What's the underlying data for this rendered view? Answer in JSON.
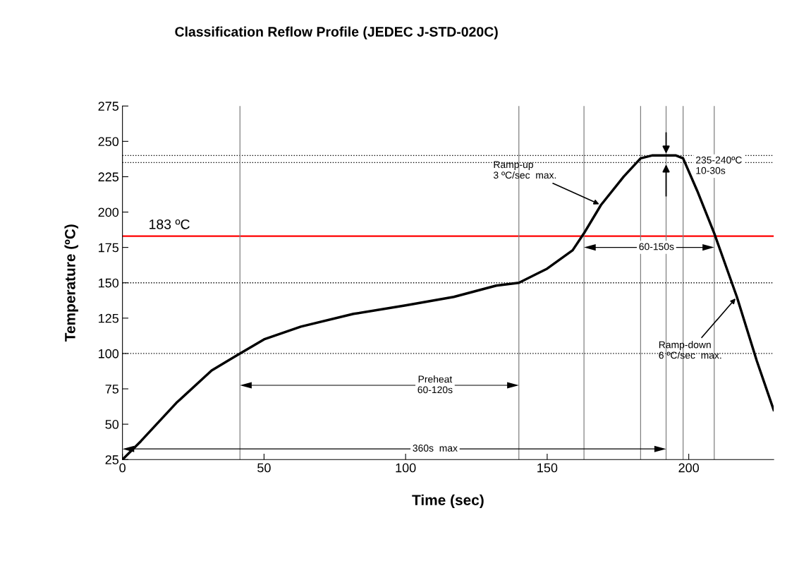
{
  "chart_data": {
    "type": "line",
    "title": "Classification Reflow Profile (JEDEC J-STD-020C)",
    "xlabel": "Time (sec)",
    "ylabel": "Temperature (ºC)",
    "x": [
      0,
      6.5,
      19,
      31.5,
      41.5,
      50,
      63,
      81.6,
      100,
      117,
      132,
      140,
      150,
      159,
      163,
      169,
      177,
      183,
      187,
      195.5,
      198,
      203,
      209,
      217,
      224,
      230
    ],
    "series": [
      {
        "color": "#000000",
        "values": [
          25,
          38,
          65,
          88,
          100,
          110,
          119,
          128,
          134,
          140,
          148,
          150,
          160,
          173,
          185,
          205,
          225,
          238,
          240,
          240,
          238,
          215,
          185,
          140,
          95,
          60
        ]
      }
    ],
    "xlim": [
      0,
      230
    ],
    "ylim": [
      25,
      275
    ],
    "xticks": [
      0,
      50,
      100,
      150,
      200
    ],
    "yticks": [
      25,
      50,
      75,
      100,
      125,
      150,
      175,
      200,
      225,
      250,
      275
    ],
    "grid": false,
    "marker": "none",
    "line_style": "solid",
    "ref_lines": [
      {
        "axis": "y",
        "value": 183,
        "label": "183 ºC",
        "color": "#ff0000",
        "line_style": "solid"
      },
      {
        "axis": "y",
        "value": 100,
        "color": "#000000",
        "line_style": "dotted"
      },
      {
        "axis": "y",
        "value": 150,
        "color": "#000000",
        "line_style": "dotted"
      },
      {
        "axis": "y",
        "value": 235,
        "color": "#000000",
        "line_style": "dotted"
      },
      {
        "axis": "y",
        "value": 240,
        "color": "#000000",
        "line_style": "dotted"
      },
      {
        "axis": "x",
        "value": 41.5,
        "color": "#808080",
        "line_style": "solid"
      },
      {
        "axis": "x",
        "value": 140,
        "color": "#808080",
        "line_style": "solid"
      },
      {
        "axis": "x",
        "value": 163,
        "color": "#808080",
        "line_style": "solid"
      },
      {
        "axis": "x",
        "value": 183,
        "color": "#808080",
        "line_style": "solid"
      },
      {
        "axis": "x",
        "value": 192,
        "color": "#808080",
        "line_style": "solid"
      },
      {
        "axis": "x",
        "value": 198,
        "color": "#808080",
        "line_style": "solid"
      },
      {
        "axis": "x",
        "value": 209,
        "color": "#808080",
        "line_style": "solid"
      }
    ],
    "annotations": [
      {
        "text": "Ramp-up\n3 ºC/sec  max.",
        "x": 169,
        "y": 205
      },
      {
        "text": "Ramp-down\n6 ºC/sec  max.",
        "x": 217,
        "y": 140
      },
      "235-240ºC\n10-30s",
      "Preheat\n60-120s",
      "360s  max",
      "60-150s"
    ]
  }
}
